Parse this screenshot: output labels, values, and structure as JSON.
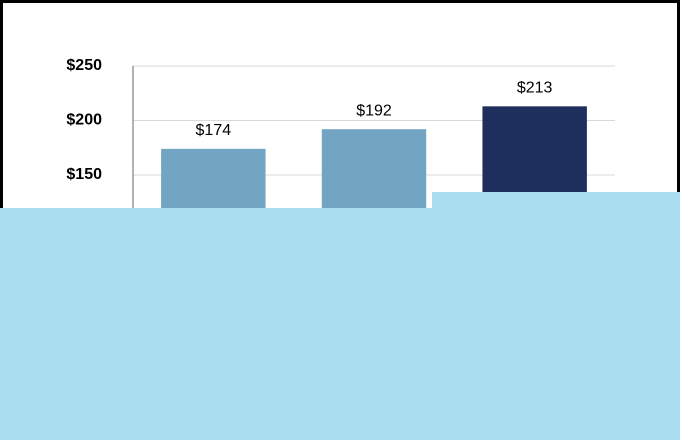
{
  "chart_data": {
    "type": "bar",
    "values": [
      174,
      192,
      213
    ],
    "value_labels": [
      "$174",
      "$192",
      "$213"
    ],
    "colors": [
      "#72a4c4",
      "#72a4c4",
      "#1e2f5e"
    ],
    "ylim": [
      0,
      250
    ],
    "yticks": [
      {
        "value": 150,
        "label": "$150"
      },
      {
        "value": 200,
        "label": "$200"
      },
      {
        "value": 250,
        "label": "$250"
      }
    ],
    "grid": true
  }
}
